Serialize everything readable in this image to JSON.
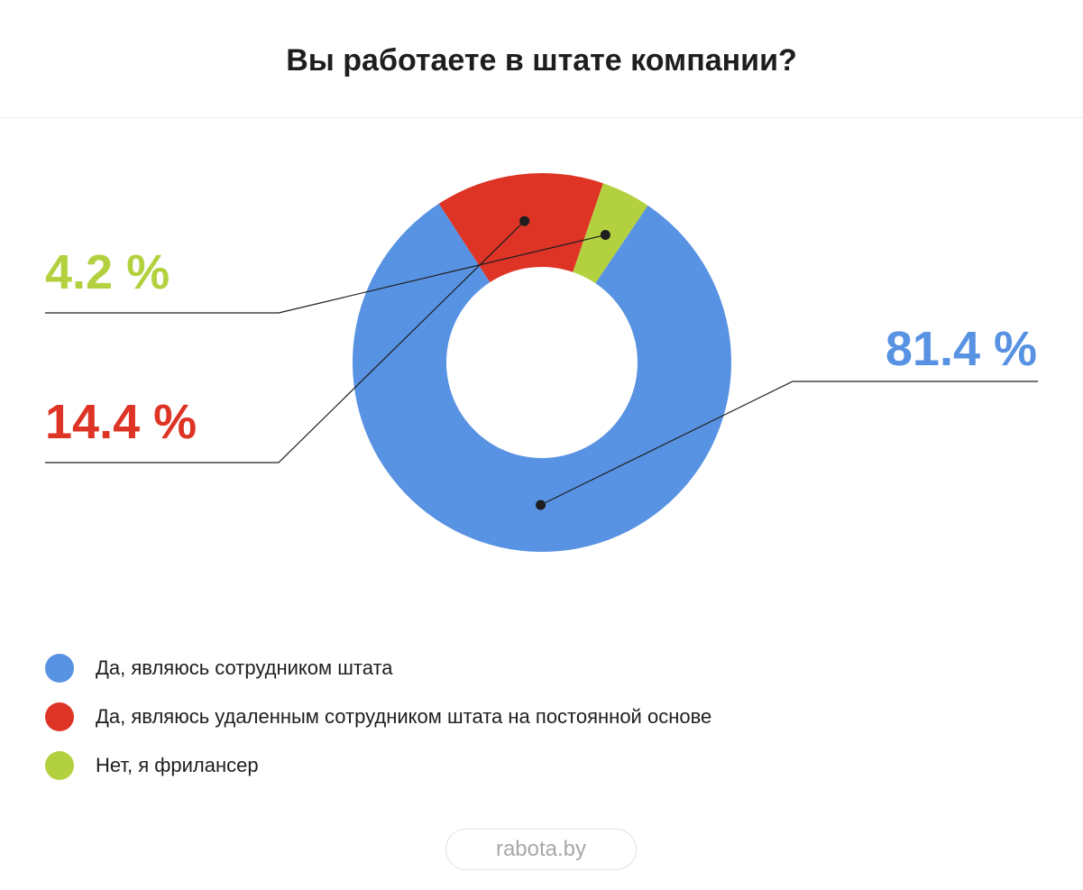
{
  "chart_data": {
    "type": "pie",
    "title": "Вы работаете в штате компании?",
    "donut": true,
    "slices": [
      {
        "label": "Да, являюсь сотрудником штата",
        "value": 81.4,
        "value_label": "81.4 %",
        "color": "#5892e2"
      },
      {
        "label": "Да, являюсь удаленным сотрудником штата на постоянной основе",
        "value": 14.4,
        "value_label": "14.4 %",
        "color": "#dd3426"
      },
      {
        "label": "Нет, я фрилансер",
        "value": 4.2,
        "value_label": "4.2 %",
        "color": "#b3d13f"
      }
    ],
    "legend_placement": "bottom-left"
  },
  "footer": {
    "brand": "rabota.by"
  }
}
